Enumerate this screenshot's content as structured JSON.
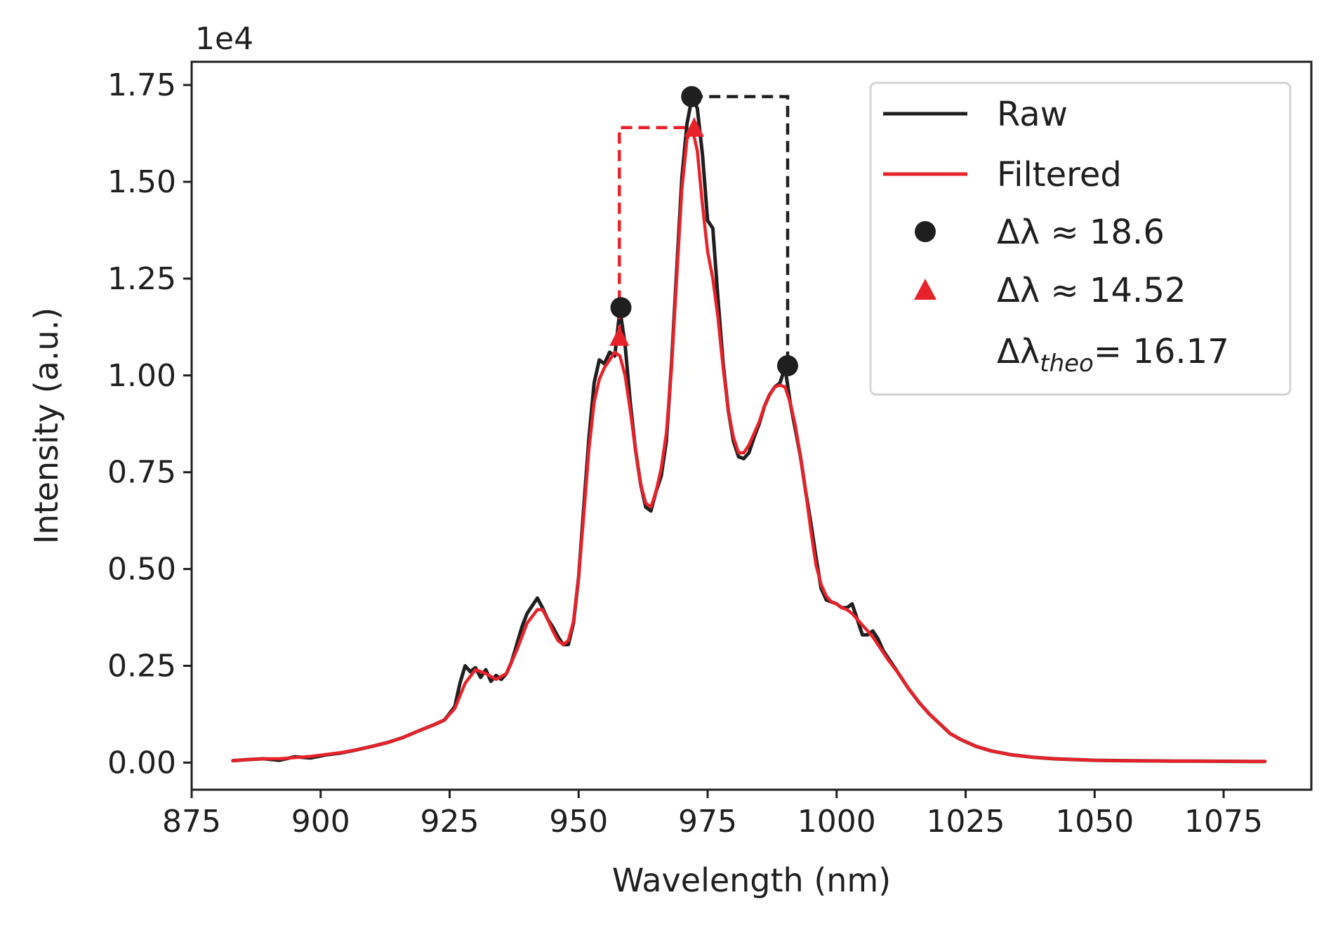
{
  "chart_data": {
    "type": "line",
    "xlabel": "Wavelength (nm)",
    "ylabel": "Intensity (a.u.)",
    "y_offset_label": "1e4",
    "xlim": [
      875,
      1092
    ],
    "ylim": [
      -700,
      18100
    ],
    "x_ticks": [
      875,
      900,
      925,
      950,
      975,
      1000,
      1025,
      1050,
      1075
    ],
    "x_tick_labels": [
      "875",
      "900",
      "925",
      "950",
      "975",
      "1000",
      "1025",
      "1050",
      "1075"
    ],
    "y_ticks": [
      0,
      2500,
      5000,
      7500,
      10000,
      12500,
      15000,
      17500
    ],
    "y_tick_labels": [
      "0.00",
      "0.25",
      "0.50",
      "0.75",
      "1.00",
      "1.25",
      "1.50",
      "1.75"
    ],
    "grid": false,
    "legend_position": "top-right",
    "series": [
      {
        "name": "Raw",
        "color": "#1f1f1f",
        "points": [
          [
            883,
            50
          ],
          [
            886,
            80
          ],
          [
            889,
            100
          ],
          [
            892,
            60
          ],
          [
            895,
            150
          ],
          [
            898,
            120
          ],
          [
            901,
            200
          ],
          [
            904,
            250
          ],
          [
            907,
            330
          ],
          [
            910,
            420
          ],
          [
            913,
            520
          ],
          [
            916,
            650
          ],
          [
            919,
            820
          ],
          [
            922,
            980
          ],
          [
            924,
            1100
          ],
          [
            926,
            1450
          ],
          [
            927,
            2050
          ],
          [
            928,
            2500
          ],
          [
            929,
            2350
          ],
          [
            930,
            2450
          ],
          [
            931,
            2200
          ],
          [
            932,
            2400
          ],
          [
            933,
            2100
          ],
          [
            934,
            2250
          ],
          [
            935,
            2150
          ],
          [
            936,
            2300
          ],
          [
            937,
            2600
          ],
          [
            938,
            3050
          ],
          [
            939,
            3500
          ],
          [
            940,
            3850
          ],
          [
            941,
            4050
          ],
          [
            942,
            4250
          ],
          [
            943,
            4000
          ],
          [
            944,
            3700
          ],
          [
            945,
            3500
          ],
          [
            946,
            3250
          ],
          [
            947,
            3050
          ],
          [
            948,
            3050
          ],
          [
            949,
            3600
          ],
          [
            950,
            4800
          ],
          [
            951,
            6600
          ],
          [
            952,
            8400
          ],
          [
            953,
            9800
          ],
          [
            954,
            10400
          ],
          [
            955,
            10300
          ],
          [
            956,
            10600
          ],
          [
            957,
            10500
          ],
          [
            958,
            11700
          ],
          [
            959,
            10800
          ],
          [
            960,
            9300
          ],
          [
            961,
            8100
          ],
          [
            962,
            7200
          ],
          [
            963,
            6600
          ],
          [
            964,
            6500
          ],
          [
            965,
            7000
          ],
          [
            966,
            7400
          ],
          [
            967,
            8300
          ],
          [
            968,
            10300
          ],
          [
            969,
            12700
          ],
          [
            970,
            15100
          ],
          [
            971,
            16500
          ],
          [
            972,
            17200
          ],
          [
            973,
            16900
          ],
          [
            974,
            15700
          ],
          [
            975,
            14000
          ],
          [
            976,
            13800
          ],
          [
            977,
            12000
          ],
          [
            978,
            10300
          ],
          [
            979,
            9100
          ],
          [
            980,
            8300
          ],
          [
            981,
            7900
          ],
          [
            982,
            7850
          ],
          [
            983,
            8000
          ],
          [
            984,
            8400
          ],
          [
            985,
            8750
          ],
          [
            986,
            9200
          ],
          [
            987,
            9500
          ],
          [
            988,
            9700
          ],
          [
            989,
            9800
          ],
          [
            990,
            10200
          ],
          [
            991,
            9300
          ],
          [
            992,
            8600
          ],
          [
            993,
            7900
          ],
          [
            994,
            7000
          ],
          [
            995,
            6200
          ],
          [
            996,
            5300
          ],
          [
            997,
            4500
          ],
          [
            998,
            4200
          ],
          [
            999,
            4150
          ],
          [
            1000,
            4100
          ],
          [
            1001,
            4000
          ],
          [
            1002,
            4000
          ],
          [
            1003,
            4100
          ],
          [
            1004,
            3700
          ],
          [
            1005,
            3300
          ],
          [
            1006,
            3300
          ],
          [
            1007,
            3400
          ],
          [
            1008,
            3200
          ],
          [
            1009,
            2900
          ],
          [
            1010,
            2700
          ],
          [
            1012,
            2300
          ],
          [
            1014,
            1900
          ],
          [
            1016,
            1550
          ],
          [
            1018,
            1250
          ],
          [
            1020,
            1000
          ],
          [
            1022,
            750
          ],
          [
            1024,
            600
          ],
          [
            1027,
            420
          ],
          [
            1030,
            300
          ],
          [
            1034,
            200
          ],
          [
            1038,
            140
          ],
          [
            1042,
            100
          ],
          [
            1046,
            80
          ],
          [
            1050,
            60
          ],
          [
            1055,
            50
          ],
          [
            1060,
            45
          ],
          [
            1065,
            40
          ],
          [
            1070,
            40
          ],
          [
            1075,
            35
          ],
          [
            1080,
            30
          ],
          [
            1083,
            30
          ]
        ]
      },
      {
        "name": "Filtered",
        "color": "#e8222a",
        "points": [
          [
            883,
            50
          ],
          [
            886,
            80
          ],
          [
            889,
            100
          ],
          [
            892,
            100
          ],
          [
            895,
            130
          ],
          [
            898,
            160
          ],
          [
            901,
            210
          ],
          [
            904,
            260
          ],
          [
            907,
            330
          ],
          [
            910,
            420
          ],
          [
            913,
            520
          ],
          [
            916,
            650
          ],
          [
            919,
            820
          ],
          [
            922,
            980
          ],
          [
            924,
            1100
          ],
          [
            926,
            1400
          ],
          [
            928,
            2050
          ],
          [
            930,
            2400
          ],
          [
            932,
            2300
          ],
          [
            934,
            2150
          ],
          [
            936,
            2300
          ],
          [
            938,
            2900
          ],
          [
            940,
            3600
          ],
          [
            942,
            3950
          ],
          [
            943,
            3950
          ],
          [
            944,
            3700
          ],
          [
            945,
            3400
          ],
          [
            946,
            3150
          ],
          [
            947,
            3050
          ],
          [
            948,
            3150
          ],
          [
            949,
            3650
          ],
          [
            950,
            4800
          ],
          [
            951,
            6400
          ],
          [
            952,
            8100
          ],
          [
            953,
            9300
          ],
          [
            954,
            9900
          ],
          [
            955,
            10200
          ],
          [
            956,
            10400
          ],
          [
            957,
            10600
          ],
          [
            958,
            10500
          ],
          [
            959,
            10000
          ],
          [
            960,
            9100
          ],
          [
            961,
            8100
          ],
          [
            962,
            7200
          ],
          [
            963,
            6700
          ],
          [
            964,
            6600
          ],
          [
            965,
            7000
          ],
          [
            966,
            7600
          ],
          [
            967,
            8500
          ],
          [
            968,
            10200
          ],
          [
            969,
            12500
          ],
          [
            970,
            14800
          ],
          [
            971,
            16100
          ],
          [
            972,
            16400
          ],
          [
            973,
            15800
          ],
          [
            974,
            14400
          ],
          [
            975,
            13200
          ],
          [
            976,
            12500
          ],
          [
            977,
            11500
          ],
          [
            978,
            10200
          ],
          [
            979,
            9100
          ],
          [
            980,
            8400
          ],
          [
            981,
            8000
          ],
          [
            982,
            8000
          ],
          [
            983,
            8200
          ],
          [
            984,
            8500
          ],
          [
            985,
            8800
          ],
          [
            986,
            9200
          ],
          [
            987,
            9500
          ],
          [
            988,
            9700
          ],
          [
            989,
            9750
          ],
          [
            990,
            9700
          ],
          [
            991,
            9300
          ],
          [
            992,
            8700
          ],
          [
            993,
            7900
          ],
          [
            994,
            7000
          ],
          [
            995,
            6000
          ],
          [
            996,
            5100
          ],
          [
            997,
            4600
          ],
          [
            998,
            4300
          ],
          [
            999,
            4150
          ],
          [
            1000,
            4100
          ],
          [
            1001,
            4000
          ],
          [
            1002,
            3950
          ],
          [
            1003,
            3850
          ],
          [
            1004,
            3700
          ],
          [
            1005,
            3550
          ],
          [
            1006,
            3400
          ],
          [
            1007,
            3250
          ],
          [
            1008,
            3050
          ],
          [
            1009,
            2850
          ],
          [
            1010,
            2650
          ],
          [
            1012,
            2300
          ],
          [
            1014,
            1900
          ],
          [
            1016,
            1550
          ],
          [
            1018,
            1250
          ],
          [
            1020,
            1000
          ],
          [
            1022,
            750
          ],
          [
            1024,
            600
          ],
          [
            1027,
            420
          ],
          [
            1030,
            300
          ],
          [
            1034,
            200
          ],
          [
            1038,
            140
          ],
          [
            1042,
            100
          ],
          [
            1046,
            80
          ],
          [
            1050,
            60
          ],
          [
            1055,
            50
          ],
          [
            1060,
            45
          ],
          [
            1065,
            40
          ],
          [
            1070,
            40
          ],
          [
            1075,
            35
          ],
          [
            1080,
            30
          ],
          [
            1083,
            30
          ]
        ]
      }
    ],
    "markers": [
      {
        "name": "Δλ ≈ 18.6",
        "symbol": "circle",
        "color": "#1f1f1f",
        "points": [
          [
            958.2,
            11750
          ],
          [
            971.9,
            17200
          ],
          [
            990.5,
            10250
          ]
        ]
      },
      {
        "name": "Δλ ≈ 14.52",
        "symbol": "triangle",
        "color": "#e8222a",
        "points": [
          [
            957.9,
            11000
          ],
          [
            972.4,
            16400
          ]
        ]
      }
    ],
    "annotations": [
      {
        "type": "bracket",
        "color": "#1f1f1f",
        "style": "dashed",
        "points": [
          [
            971.9,
            17200
          ],
          [
            990.5,
            17200
          ],
          [
            990.5,
            10250
          ]
        ]
      },
      {
        "type": "bracket",
        "color": "#e8222a",
        "style": "dashed",
        "points": [
          [
            957.9,
            11000
          ],
          [
            957.9,
            16400
          ],
          [
            972.4,
            16400
          ]
        ]
      }
    ],
    "legend": [
      {
        "symbol": "line",
        "color": "#1f1f1f",
        "label": "Raw"
      },
      {
        "symbol": "line",
        "color": "#e8222a",
        "label": "Filtered"
      },
      {
        "symbol": "circle",
        "color": "#1f1f1f",
        "label_main": "Δλ ≈ 18.6"
      },
      {
        "symbol": "triangle",
        "color": "#e8222a",
        "label_main": "Δλ ≈ 14.52"
      },
      {
        "symbol": "none",
        "color": "",
        "label_main": "Δλ",
        "label_sub": "theo",
        "label_tail": "= 16.17"
      }
    ]
  }
}
